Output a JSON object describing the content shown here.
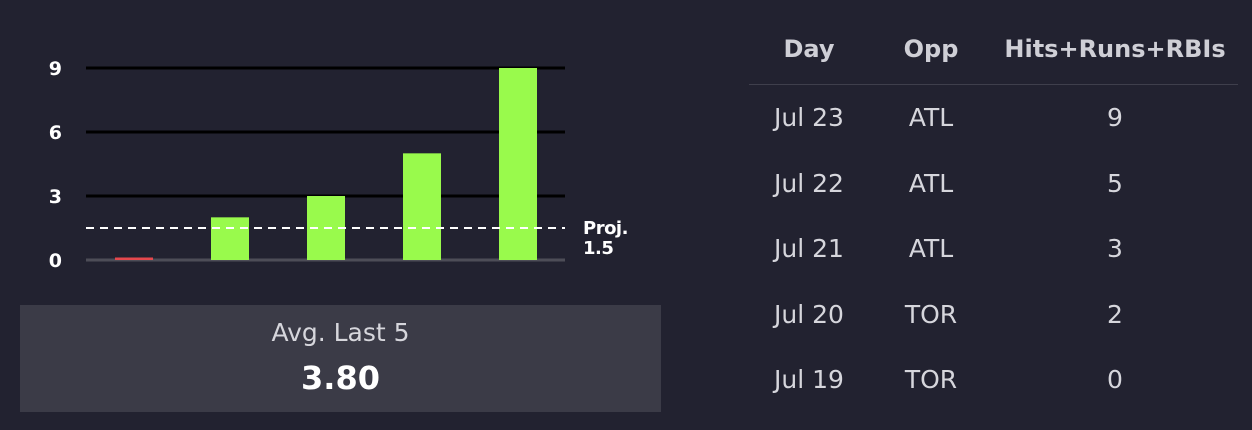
{
  "chart_data": {
    "type": "bar",
    "categories": [
      "Jul 19",
      "Jul 20",
      "Jul 21",
      "Jul 22",
      "Jul 23"
    ],
    "values": [
      0,
      2,
      3,
      5,
      9
    ],
    "yticks": [
      0,
      3,
      6,
      9
    ],
    "ylim": [
      0,
      9
    ],
    "grid": true,
    "projection": {
      "label": "Proj.",
      "value": 1.5
    },
    "colors": {
      "bar": "#99fa4c",
      "zero_bar": "#e5484d",
      "gridline": "#000000",
      "baseline": "#4d4d57",
      "projection_line": "#ffffff"
    }
  },
  "summary": {
    "label": "Avg. Last 5",
    "value": "3.80"
  },
  "table": {
    "headers": [
      "Day",
      "Opp",
      "Hits+Runs+RBIs"
    ],
    "rows": [
      [
        "Jul 23",
        "ATL",
        "9"
      ],
      [
        "Jul 22",
        "ATL",
        "5"
      ],
      [
        "Jul 21",
        "ATL",
        "3"
      ],
      [
        "Jul 20",
        "TOR",
        "2"
      ],
      [
        "Jul 19",
        "TOR",
        "0"
      ]
    ]
  },
  "colors": {
    "background": "#222230",
    "panel": "#3b3b47",
    "text_muted": "#d6d6dc"
  }
}
